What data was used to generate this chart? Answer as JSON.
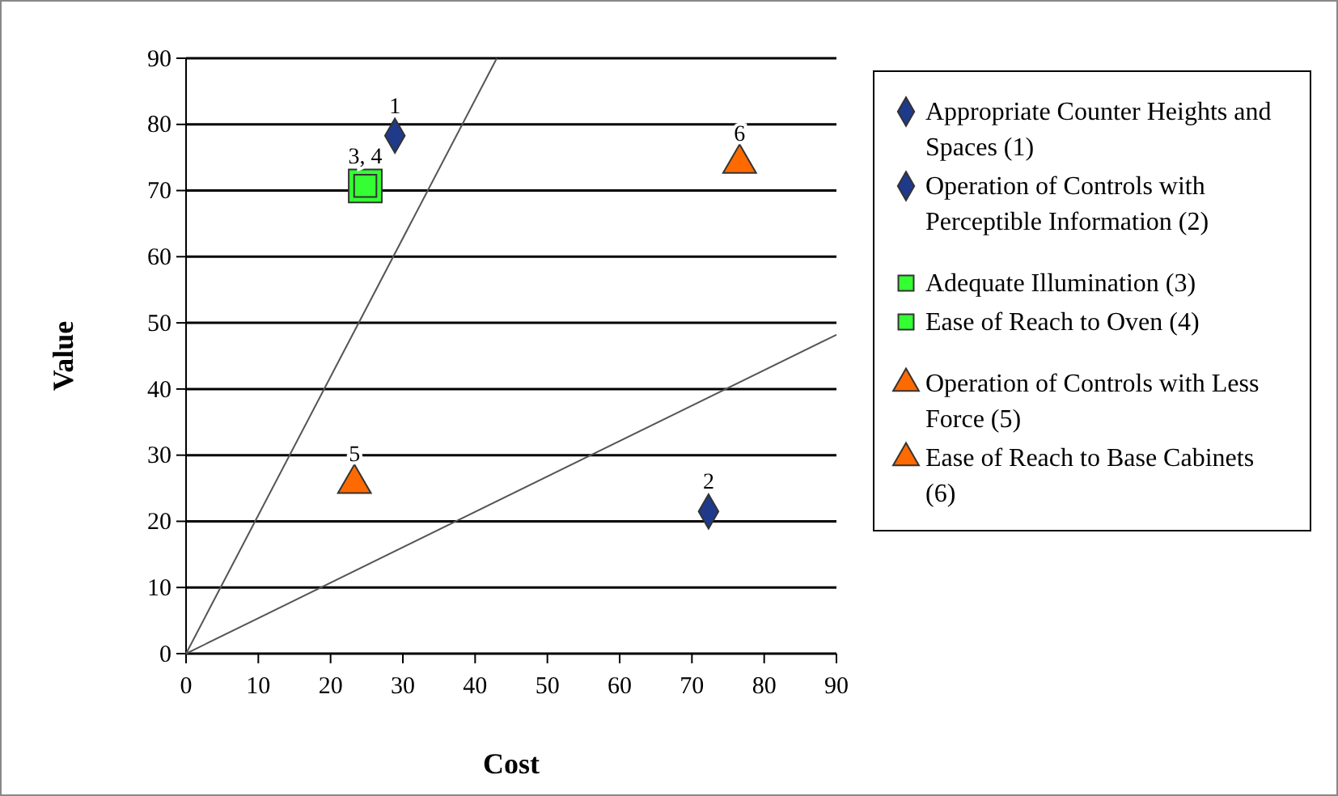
{
  "chart_data": {
    "type": "scatter",
    "xlabel": "Cost",
    "ylabel": "Value",
    "xlim": [
      0,
      90
    ],
    "ylim": [
      0,
      90
    ],
    "xticks": [
      0,
      10,
      20,
      30,
      40,
      50,
      60,
      70,
      80,
      90
    ],
    "yticks": [
      0,
      10,
      20,
      30,
      40,
      50,
      60,
      70,
      80,
      90
    ],
    "grid": "y",
    "legend": "right",
    "series": [
      {
        "name": "Appropriate Counter Heights and Spaces (1)",
        "color": "#1f3a8a",
        "marker": "diamond",
        "x": [
          28.9
        ],
        "values": [
          78.3
        ]
      },
      {
        "name": "Operation of Controls with Perceptible Information (2)",
        "color": "#1f3a8a",
        "marker": "diamond",
        "x": [
          72.3
        ],
        "values": [
          21.5
        ]
      },
      {
        "name": "Adequate Illumination (3)",
        "color": "#33ff33",
        "marker": "square",
        "x": [
          24.8
        ],
        "values": [
          70.7
        ]
      },
      {
        "name": "Ease of Reach to Oven (4)",
        "color": "#33ff33",
        "marker": "square",
        "x": [
          24.8
        ],
        "values": [
          70.7
        ]
      },
      {
        "name": "Operation of Controls with Less Force (5)",
        "color": "#ff6a00",
        "marker": "triangle",
        "x": [
          23.3
        ],
        "values": [
          25.7
        ]
      },
      {
        "name": "Ease of Reach to Base Cabinets (6)",
        "color": "#ff6a00",
        "marker": "triangle",
        "x": [
          76.6
        ],
        "values": [
          74.1
        ]
      },
      {
        "type": "line",
        "color": "#555555",
        "marker": "none",
        "x": [
          0,
          43
        ],
        "values": [
          0,
          90
        ]
      },
      {
        "type": "line",
        "color": "#555555",
        "marker": "none",
        "x": [
          0,
          90
        ],
        "values": [
          0,
          48.2
        ]
      }
    ],
    "annotations": [
      {
        "text": "1",
        "x": 28.9,
        "y": 78.3
      },
      {
        "text": "2",
        "x": 72.3,
        "y": 21.5
      },
      {
        "text": "3, 4",
        "x": 24.8,
        "y": 70.7
      },
      {
        "text": "5",
        "x": 23.3,
        "y": 25.7
      },
      {
        "text": "6",
        "x": 76.6,
        "y": 74.1
      }
    ]
  }
}
